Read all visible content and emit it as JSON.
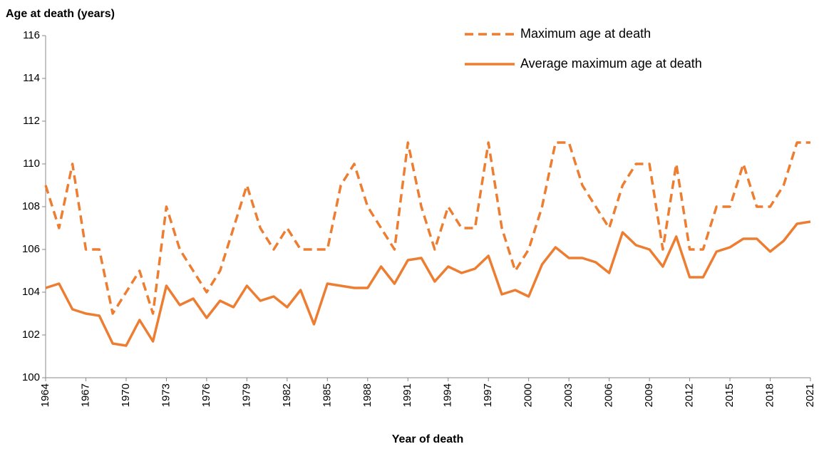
{
  "chart_data": {
    "type": "line",
    "y_label": "Age at death (years)",
    "x_label": "Year of death",
    "x": [
      1964,
      1965,
      1966,
      1967,
      1968,
      1969,
      1970,
      1971,
      1972,
      1973,
      1974,
      1975,
      1976,
      1977,
      1978,
      1979,
      1980,
      1981,
      1982,
      1983,
      1984,
      1985,
      1986,
      1987,
      1988,
      1989,
      1990,
      1991,
      1992,
      1993,
      1994,
      1995,
      1996,
      1997,
      1998,
      1999,
      2000,
      2001,
      2002,
      2003,
      2004,
      2005,
      2006,
      2007,
      2008,
      2009,
      2010,
      2011,
      2012,
      2013,
      2014,
      2015,
      2016,
      2017,
      2018,
      2019,
      2020,
      2021
    ],
    "series": [
      {
        "name": "Maximum age at death",
        "color": "#ED7D31",
        "style": "dashed",
        "values": [
          109,
          107,
          110,
          106,
          106,
          103,
          104,
          105,
          103,
          108,
          106,
          105,
          104,
          105,
          107,
          109,
          107,
          106,
          107,
          106,
          106,
          106,
          109,
          110,
          108,
          107,
          106,
          111,
          108,
          106,
          108,
          107,
          107,
          111,
          107,
          105,
          106,
          108,
          111,
          111,
          109,
          108,
          107,
          109,
          110,
          110,
          106,
          110,
          106,
          106,
          108,
          108,
          110,
          108,
          108,
          109,
          111,
          111
        ]
      },
      {
        "name": "Average maximum age at death",
        "color": "#ED7D31",
        "style": "solid",
        "values": [
          104.2,
          104.4,
          103.2,
          103.0,
          102.9,
          101.6,
          101.5,
          102.7,
          101.7,
          104.3,
          103.4,
          103.7,
          102.8,
          103.6,
          103.3,
          104.3,
          103.6,
          103.8,
          103.3,
          104.1,
          102.5,
          104.4,
          104.3,
          104.2,
          104.2,
          105.2,
          104.4,
          105.5,
          105.6,
          104.5,
          105.2,
          104.9,
          105.1,
          105.7,
          103.9,
          104.1,
          103.8,
          105.3,
          106.1,
          105.6,
          105.6,
          105.4,
          104.9,
          106.8,
          106.2,
          106.0,
          105.2,
          106.6,
          104.7,
          104.7,
          105.9,
          106.1,
          106.5,
          106.5,
          105.9,
          106.4,
          107.2,
          107.3
        ]
      }
    ],
    "xlim": [
      1964,
      2021
    ],
    "xticks": [
      1964,
      1967,
      1970,
      1973,
      1976,
      1979,
      1982,
      1985,
      1988,
      1991,
      1994,
      1997,
      2000,
      2003,
      2006,
      2009,
      2012,
      2015,
      2018,
      2021
    ],
    "ylim": [
      100,
      116
    ],
    "yticks": [
      100,
      102,
      104,
      106,
      108,
      110,
      112,
      114,
      116
    ],
    "grid": false,
    "legend": "upper right"
  }
}
